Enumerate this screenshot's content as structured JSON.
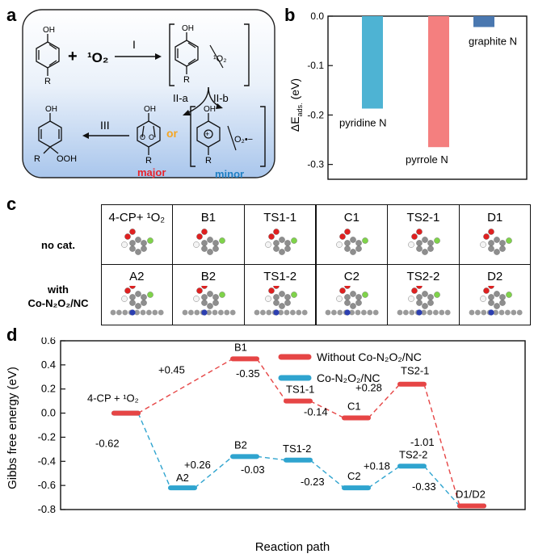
{
  "panels": {
    "a": "a",
    "b": "b",
    "c": "c",
    "d": "d"
  },
  "scheme": {
    "plus": "+",
    "oxygen_reagent": "¹O₂",
    "steps": [
      "I",
      "II-a",
      "II-b",
      "III"
    ],
    "or_label": "or",
    "major_label": "major",
    "minor_label": "minor",
    "complex_o2": "¹O₂",
    "radical_o2": "O₂•−",
    "atoms": {
      "oh": "OH",
      "r": "R",
      "ooh": "OOH",
      "o": "O",
      "plus_charge": "+"
    },
    "colors": {
      "major": "#e8232a",
      "minor": "#1f7fc3",
      "or": "#f5a623"
    }
  },
  "bar_chart": {
    "title": "b",
    "ylabel": "ΔEₐₓₛ. (eV)",
    "ylabel_main": "ΔE",
    "ylabel_sub": "ads.",
    "ylabel_unit": "(eV)",
    "yticks": [
      "0.0",
      "-0.1",
      "-0.2",
      "-0.3"
    ]
  },
  "grid": {
    "headers_row1": [
      "4-CP+ ¹O₂",
      "B1",
      "TS1-1",
      "C1",
      "TS2-1",
      "D1"
    ],
    "headers_row2": [
      "A2",
      "B2",
      "TS1-2",
      "C2",
      "TS2-2",
      "D2"
    ],
    "row_label1": "no cat.",
    "row_label2_line1": "with",
    "row_label2_line2": "Co-N₂O₂/NC"
  },
  "energy_chart": {
    "ylabel": "Gibbs free energy (eV)",
    "xlabel": "Reaction path",
    "yticks": [
      "0.6",
      "0.4",
      "0.2",
      "0.0",
      "-0.2",
      "-0.4",
      "-0.6",
      "-0.8"
    ],
    "legend": [
      "Without Co-N₂O₂/NC",
      "Co-N₂O₂/NC"
    ],
    "state_labels": {
      "start": "4-CP + ¹O₂",
      "B1": "B1",
      "TS1_1": "TS1-1",
      "C1": "C1",
      "TS2_1": "TS2-1",
      "A2": "A2",
      "B2": "B2",
      "TS1_2": "TS1-2",
      "C2": "C2",
      "TS2_2": "TS2-2",
      "end": "D1/D2"
    },
    "deltas_red": [
      "+0.45",
      "-0.35",
      "-0.14",
      "+0.28",
      "-1.01"
    ],
    "deltas_blue": [
      "-0.62",
      "+0.26",
      "-0.03",
      "-0.23",
      "+0.18",
      "-0.33"
    ]
  },
  "chart_data": [
    {
      "type": "bar",
      "categories": [
        "pyridine N",
        "pyrrole N",
        "graphite N"
      ],
      "values": [
        -0.187,
        -0.265,
        -0.022
      ],
      "colors": [
        "#4eb3d3",
        "#f47f7f",
        "#4a78b0"
      ],
      "ylabel": "ΔE ads. (eV)",
      "ylim": [
        -0.33,
        0.0
      ]
    },
    {
      "type": "line",
      "categories": [
        "4-CP + ¹O₂",
        "A2 / B1",
        "B2 / TS1-1",
        "TS1-2 / C1",
        "C2 / TS2-1",
        "TS2-2",
        "D1/D2"
      ],
      "ylabel": "Gibbs free energy (eV)",
      "xlabel": "Reaction path",
      "ylim": [
        -0.8,
        0.6
      ],
      "series": [
        {
          "name": "Without Co-N₂O₂/NC",
          "color": "#e64545",
          "x": [
            0,
            2,
            3,
            4,
            5,
            7
          ],
          "values": [
            0.0,
            0.45,
            0.1,
            -0.04,
            0.24,
            -0.77
          ]
        },
        {
          "name": "Co-N₂O₂/NC",
          "color": "#2fa4cf",
          "x": [
            0,
            1,
            2,
            3,
            4,
            5,
            7
          ],
          "values": [
            0.0,
            -0.62,
            -0.36,
            -0.39,
            -0.62,
            -0.44,
            -0.77
          ]
        }
      ]
    }
  ]
}
